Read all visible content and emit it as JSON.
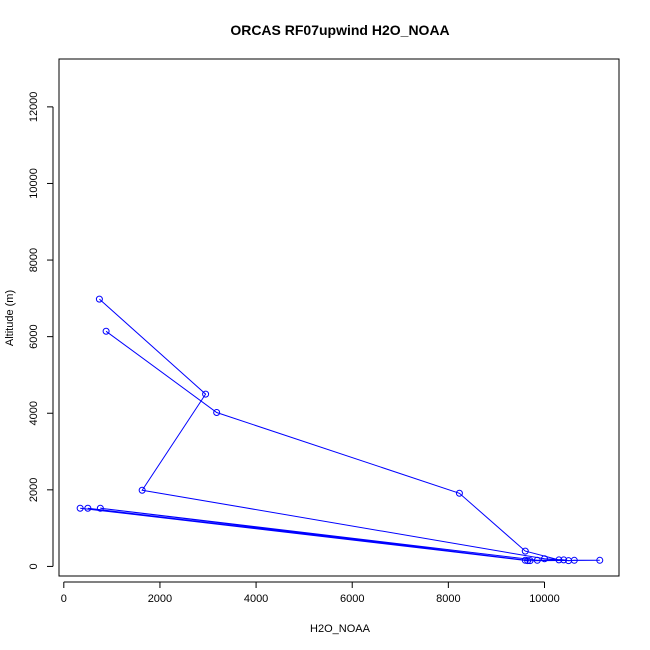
{
  "chart_data": {
    "type": "line",
    "title": "ORCAS RF07upwind H2O_NOAA",
    "xlabel": "H2O_NOAA",
    "ylabel": "Altitude (m)",
    "xlim": [
      -100,
      11550
    ],
    "ylim": [
      -250,
      13250
    ],
    "x_ticks": [
      0,
      2000,
      4000,
      6000,
      8000,
      10000
    ],
    "y_ticks": [
      0,
      2000,
      4000,
      6000,
      8000,
      10000,
      12000
    ],
    "grid": false,
    "color": "#0000ff",
    "series": [
      {
        "points": [
          [
            740,
            6980
          ],
          [
            2950,
            4500
          ],
          [
            1630,
            1990
          ],
          [
            10000,
            200
          ],
          [
            10400,
            170
          ],
          [
            10500,
            150
          ],
          [
            10620,
            160
          ],
          [
            11150,
            160
          ],
          [
            9650,
            150
          ],
          [
            500,
            1520
          ],
          [
            9600,
            160
          ],
          [
            340,
            1520
          ],
          [
            9700,
            150
          ],
          [
            760,
            1520
          ],
          [
            9850,
            160
          ],
          [
            10300,
            170
          ],
          [
            9600,
            400
          ],
          [
            8230,
            1910
          ],
          [
            3180,
            4020
          ],
          [
            880,
            6140
          ]
        ]
      }
    ]
  }
}
